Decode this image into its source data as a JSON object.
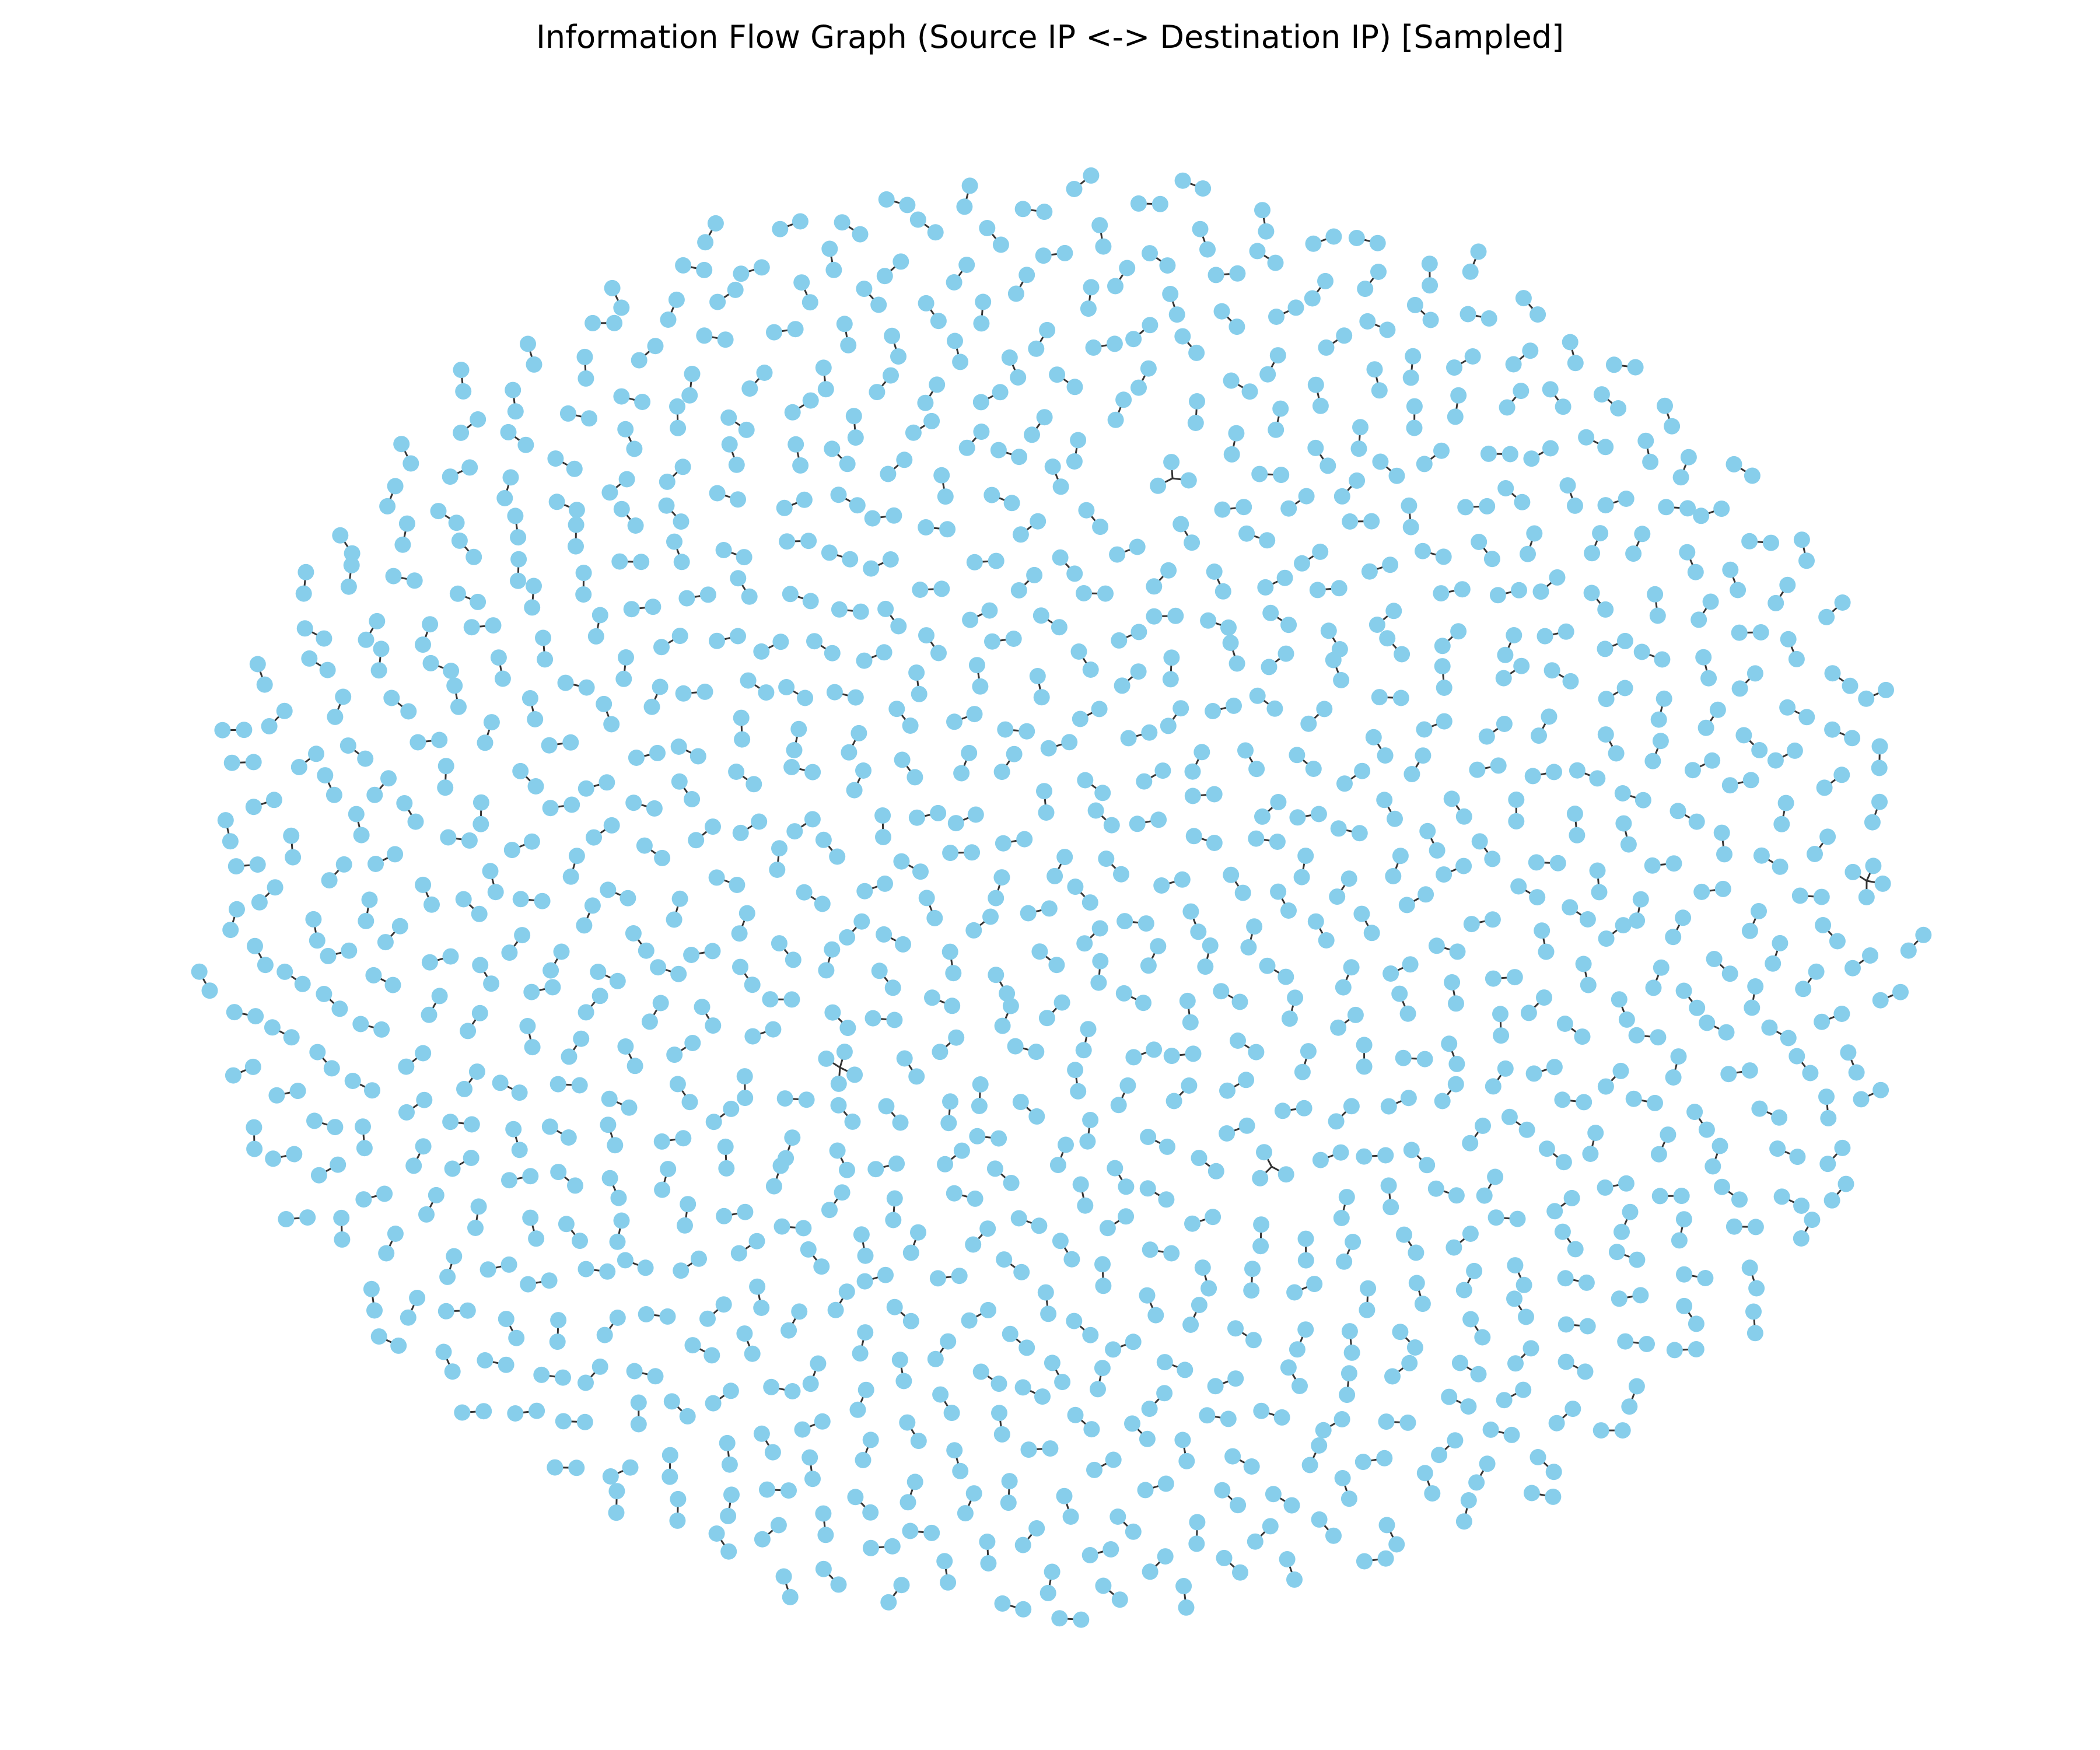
{
  "title": "Information Flow Graph (Source IP <-> Destination IP) [Sampled]",
  "colors": {
    "background": "#ffffff",
    "node": "#87ceeb",
    "edge": "#333333",
    "title": "#000000"
  },
  "graph": {
    "layout": "spring",
    "node_shape": "circle",
    "components": "mostly isolated source-destination pairs plus a few small hub clusters",
    "approx_pair_count": 820,
    "hub_clusters": 4
  }
}
